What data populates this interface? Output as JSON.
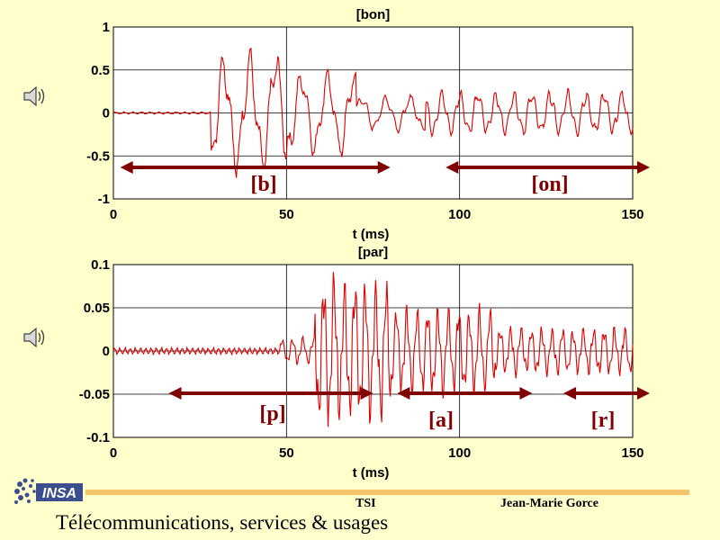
{
  "chart_data": [
    {
      "type": "line",
      "title": "[bon]",
      "xlabel": "t (ms)",
      "ylabel": "",
      "xlim": [
        0,
        150
      ],
      "ylim": [
        -1,
        1
      ],
      "xticks": [
        "0",
        "50",
        "100",
        "150"
      ],
      "yticks": [
        "1",
        "0.5",
        "0",
        "-0.5",
        "-1"
      ],
      "grid": true,
      "line_color": "#dd0000",
      "annotations": [
        {
          "label": "[b]",
          "x_start": 2,
          "x_end": 80
        },
        {
          "label": "[on]",
          "x_start": 96,
          "x_end": 155
        }
      ],
      "segments": [
        {
          "x_start": 0,
          "x_end": 28,
          "amplitude": 0.01,
          "period_ms": 2.5
        },
        {
          "x_start": 28,
          "x_end": 50,
          "amplitude": 0.55,
          "period_ms": 7.5
        },
        {
          "x_start": 50,
          "x_end": 70,
          "amplitude": 0.38,
          "period_ms": 7.5
        },
        {
          "x_start": 70,
          "x_end": 90,
          "amplitude": 0.16,
          "period_ms": 7.0
        },
        {
          "x_start": 90,
          "x_end": 150,
          "amplitude": 0.2,
          "period_ms": 5.2
        }
      ]
    },
    {
      "type": "line",
      "title": "[par]",
      "xlabel": "t (ms)",
      "ylabel": "",
      "xlim": [
        0,
        150
      ],
      "ylim": [
        -0.1,
        0.1
      ],
      "xticks": [
        "0",
        "50",
        "100",
        "150"
      ],
      "yticks": [
        "0.1",
        "0.05",
        "0",
        "-0.05",
        "-0.1"
      ],
      "grid": true,
      "line_color": "#dd0000",
      "annotations": [
        {
          "label": "[p]",
          "x_start": 16,
          "x_end": 75
        },
        {
          "label": "[a]",
          "x_start": 82,
          "x_end": 121
        },
        {
          "label": "[r]",
          "x_start": 130,
          "x_end": 155
        }
      ],
      "segments": [
        {
          "x_start": 0,
          "x_end": 48,
          "amplitude": 0.003,
          "period_ms": 1.5
        },
        {
          "x_start": 48,
          "x_end": 58,
          "amplitude": 0.012,
          "period_ms": 3.0
        },
        {
          "x_start": 58,
          "x_end": 65,
          "amplitude": 0.07,
          "period_ms": 3.0
        },
        {
          "x_start": 65,
          "x_end": 80,
          "amplitude": 0.065,
          "period_ms": 3.0
        },
        {
          "x_start": 80,
          "x_end": 110,
          "amplitude": 0.04,
          "period_ms": 3.0
        },
        {
          "x_start": 110,
          "x_end": 150,
          "amplitude": 0.022,
          "period_ms": 3.0
        }
      ]
    }
  ],
  "footer": {
    "center_text": "TSI",
    "author": "Jean-Marie Gorce",
    "title": "Télécommunications, services & usages",
    "logo_text": "INSA"
  },
  "colors": {
    "background": "#ffffcc",
    "arrow": "#800000",
    "accent_line": "#f3c46a",
    "signal": "#dd0000"
  },
  "icons": [
    "speaker-icon",
    "speaker-icon",
    "insa-logo"
  ]
}
